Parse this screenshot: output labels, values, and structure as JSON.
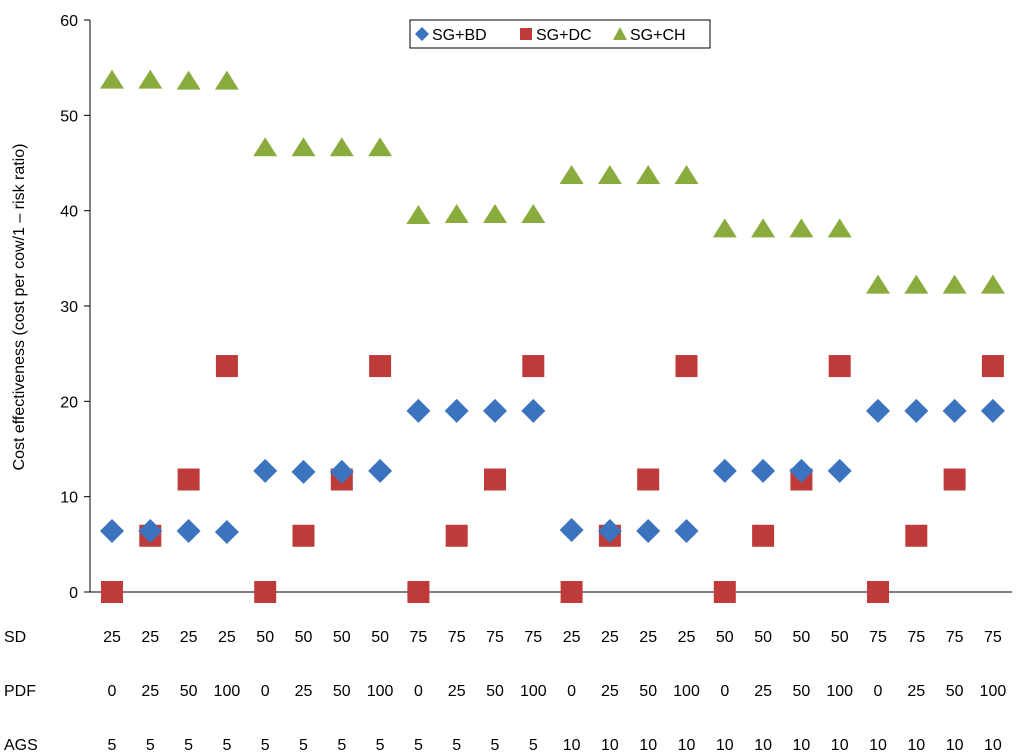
{
  "chart_data": {
    "type": "scatter",
    "ylabel": "Cost effectiveness (cost per cow/1 – risk ratio)",
    "ylim": [
      0,
      60
    ],
    "yticks": [
      0,
      10,
      20,
      30,
      40,
      50,
      60
    ],
    "grid": false,
    "legend_position": "top-center",
    "category_rows": [
      {
        "label": "SD",
        "values": [
          "25",
          "25",
          "25",
          "25",
          "50",
          "50",
          "50",
          "50",
          "75",
          "75",
          "75",
          "75",
          "25",
          "25",
          "25",
          "25",
          "50",
          "50",
          "50",
          "50",
          "75",
          "75",
          "75",
          "75"
        ]
      },
      {
        "label": "PDF",
        "values": [
          "0",
          "25",
          "50",
          "100",
          "0",
          "25",
          "50",
          "100",
          "0",
          "25",
          "50",
          "100",
          "0",
          "25",
          "50",
          "100",
          "0",
          "25",
          "50",
          "100",
          "0",
          "25",
          "50",
          "100"
        ]
      },
      {
        "label": "AGS",
        "values": [
          "5",
          "5",
          "5",
          "5",
          "5",
          "5",
          "5",
          "5",
          "5",
          "5",
          "5",
          "5",
          "10",
          "10",
          "10",
          "10",
          "10",
          "10",
          "10",
          "10",
          "10",
          "10",
          "10",
          "10"
        ]
      }
    ],
    "series": [
      {
        "name": "SG+BD",
        "marker": "diamond",
        "color": "#3c73be",
        "values": [
          6.4,
          6.4,
          6.4,
          6.3,
          12.7,
          12.6,
          12.6,
          12.7,
          19.0,
          19.0,
          19.0,
          19.0,
          6.5,
          6.4,
          6.4,
          6.4,
          12.7,
          12.7,
          12.7,
          12.7,
          19.0,
          19.0,
          19.0,
          19.0
        ]
      },
      {
        "name": "SG+DC",
        "marker": "square",
        "color": "#bf3b3a",
        "values": [
          0.0,
          5.9,
          11.8,
          23.7,
          0.0,
          5.9,
          11.8,
          23.7,
          0.0,
          5.9,
          11.8,
          23.7,
          0.0,
          5.9,
          11.8,
          23.7,
          0.0,
          5.9,
          11.8,
          23.7,
          0.0,
          5.9,
          11.8,
          23.7
        ]
      },
      {
        "name": "SG+CH",
        "marker": "triangle",
        "color": "#8aac3f",
        "values": [
          53.6,
          53.6,
          53.5,
          53.5,
          46.5,
          46.5,
          46.5,
          46.5,
          39.4,
          39.5,
          39.5,
          39.5,
          43.6,
          43.6,
          43.6,
          43.6,
          38.0,
          38.0,
          38.0,
          38.0,
          32.1,
          32.1,
          32.1,
          32.1
        ]
      }
    ]
  }
}
